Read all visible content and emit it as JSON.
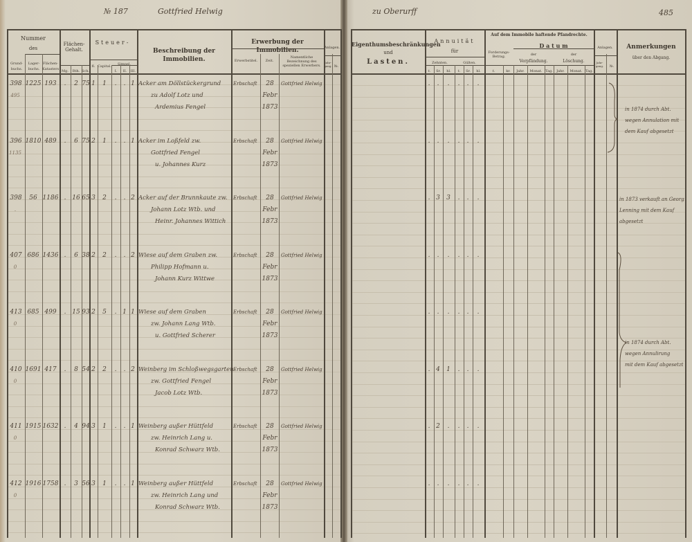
{
  "page_header": {
    "left_number": "№ 187",
    "left_name": "Gottfried Helwig",
    "right_place": "zu Oberurff",
    "page_number": "485"
  },
  "left_headers": {
    "nummer": "Nummer",
    "des": "des",
    "grundbuch": "Grund-buchs.",
    "lagerbuch": "Lager-buchs.",
    "kataster": "Flächen-Katasters",
    "flaechen": "Flächen-Gehalt.",
    "mg": "Mg.",
    "rth": "Rth.",
    "sch": "Sch.",
    "steuer": "Steuer-",
    "fl": "fl.",
    "capital": "Capital.",
    "simpel": "Simpel.",
    "s1": "I.",
    "s2": "II.",
    "s3": "III.",
    "beschreibung": "Beschreibung der Immobilien.",
    "erwerbung": "Erwerbung der Immobilien.",
    "erwerbstitel": "Erwerbstitel.",
    "zeit": "Zeit.",
    "erwerber": "Namentliche Bezeichnung des speziellen Erwerbers.",
    "anlagen": "Anlagen.",
    "jahrgang": "Jahr-gang.",
    "nr": "№."
  },
  "right_headers": {
    "eigenthum": "Eigenthumsbeschränkungen",
    "und": "und",
    "lasten": "Lasten.",
    "annuitaet": "Annuität",
    "fuer": "für",
    "zehnten": "Zehnten.",
    "gueltten": "Gülten.",
    "thlr": "ℓ.",
    "sgr": "Sr.",
    "hl": "hl.",
    "pfandrechte": "Auf dem Immobile haftende Pfandrechte.",
    "forderung": "Forderungs-Betrag.",
    "fl": "ℓ.",
    "kr": "kr.",
    "datum": "D a t u m",
    "der1": "der",
    "verpfaendung": "Verpfändung.",
    "der2": "der",
    "loeschung": "Löschung.",
    "jahr": "Jahr.",
    "monat": "Monat.",
    "tag": "Tag.",
    "anlagen": "Anlagen.",
    "jahrgang": "Jahr-gang.",
    "nr": "№.",
    "anmerkungen": "Anmerkungen",
    "abgang": "über den Abgang."
  },
  "rows": [
    {
      "grund": "398",
      "grund_note": "495",
      "lager": "1225",
      "kataster": "193",
      "mg": ".",
      "rth": "2",
      "sch": "75",
      "fl": "1",
      "capital": "1",
      "s1": ".",
      "s2": ".",
      "s3": "1",
      "desc": [
        "Acker am Döllstückergrund",
        "zu Adolf Lotz und",
        "Ardemius Fengel"
      ],
      "titel": "Erbschaft",
      "zeit": [
        "28",
        "Febr",
        "1873"
      ],
      "erwerber": "Gottfried Helwig",
      "annuitaet": [
        ".",
        ".",
        ".",
        ".",
        ".",
        "."
      ]
    },
    {
      "grund": "396",
      "grund_note": "1135",
      "lager": "1810",
      "kataster": "489",
      "mg": ".",
      "rth": "6",
      "sch": "75",
      "fl": "2",
      "capital": "1",
      "s1": ".",
      "s2": ".",
      "s3": "1",
      "desc": [
        "Acker im Loßfeld zw.",
        "Gottfried Fengel",
        "u. Johannes Kurz"
      ],
      "titel": "Erbschaft",
      "zeit": [
        "28",
        "Febr",
        "1873"
      ],
      "erwerber": "Gottfried Helwig",
      "annuitaet": [
        ".",
        ".",
        ".",
        ".",
        ".",
        "."
      ]
    },
    {
      "grund": "398",
      "grund_note": ".",
      "lager": "56",
      "kataster": "1186",
      "mg": ".",
      "rth": "16",
      "sch": "65",
      "fl": "3",
      "capital": "2",
      "s1": ".",
      "s2": ".",
      "s3": "2",
      "desc": [
        "Acker auf der Brunnkaute zw.",
        "Johann Lotz Wtb. und",
        "Heinr. Johannes Wittich"
      ],
      "titel": "Erbschaft",
      "zeit": [
        "28",
        "Febr",
        "1873"
      ],
      "erwerber": "Gottfried Helwig",
      "annuitaet": [
        ".",
        "3",
        "3",
        ".",
        ".",
        "."
      ]
    },
    {
      "grund": "407",
      "grund_note": "0",
      "lager": "686",
      "kataster": "1436",
      "mg": ".",
      "rth": "6",
      "sch": "38",
      "fl": "2",
      "capital": "2",
      "s1": ".",
      "s2": ".",
      "s3": "2",
      "desc": [
        "Wiese auf dem Graben zw.",
        "Philipp Hofmann u.",
        "Johann Kurz Wittwe"
      ],
      "titel": "Erbschaft",
      "zeit": [
        "28",
        "Febr",
        "1873"
      ],
      "erwerber": "Gottfried Helwig",
      "annuitaet": [
        ".",
        ".",
        ".",
        ".",
        ".",
        "."
      ]
    },
    {
      "grund": "413",
      "grund_note": "0",
      "lager": "685",
      "kataster": "499",
      "mg": ".",
      "rth": "15",
      "sch": "93",
      "fl": "2",
      "capital": "5",
      "s1": ".",
      "s2": "1",
      "s3": "1",
      "desc": [
        "Wiese auf dem Graben",
        "zw. Johann Lang Wtb.",
        "u. Gottfried Scherer"
      ],
      "titel": "Erbschaft",
      "zeit": [
        "28",
        "Febr",
        "1873"
      ],
      "erwerber": "Gottfried Helwig",
      "annuitaet": [
        ".",
        ".",
        ".",
        ".",
        ".",
        "."
      ]
    },
    {
      "grund": "410",
      "grund_note": "0",
      "lager": "1691",
      "kataster": "417",
      "mg": ".",
      "rth": "8",
      "sch": "54",
      "fl": "2",
      "capital": "2",
      "s1": ".",
      "s2": ".",
      "s3": "2",
      "desc": [
        "Weinberg im Schloßwegsgarten",
        "zw. Gottfried Fengel",
        "Jacob Lotz Wtb."
      ],
      "titel": "Erbschaft",
      "zeit": [
        "28",
        "Febr",
        "1873"
      ],
      "erwerber": "Gottfried Helwig",
      "annuitaet": [
        ".",
        "4",
        "1",
        ".",
        ".",
        "."
      ]
    },
    {
      "grund": "411",
      "grund_note": "0",
      "lager": "1915",
      "kataster": "1632",
      "mg": ".",
      "rth": "4",
      "sch": "94",
      "fl": "3",
      "capital": "1",
      "s1": ".",
      "s2": ".",
      "s3": "1",
      "desc": [
        "Weinberg außer Hüttfeld",
        "zw. Heinrich Lang u.",
        "Konrad Schwarz Wtb."
      ],
      "titel": "Erbschaft",
      "zeit": [
        "28",
        "Febr",
        "1873"
      ],
      "erwerber": "Gottfried Helwig",
      "annuitaet": [
        ".",
        "2",
        ".",
        ".",
        ".",
        "."
      ]
    },
    {
      "grund": "412",
      "grund_note": "0",
      "lager": "1916",
      "kataster": "1758",
      "mg": ".",
      "rth": "3",
      "sch": "56",
      "fl": "3",
      "capital": "1",
      "s1": ".",
      "s2": ".",
      "s3": "1",
      "desc": [
        "Weinberg außer Hüttfeld",
        "zw. Heinrich Lang und",
        "Konrad Schwarz Wtb."
      ],
      "titel": "Erbschaft",
      "zeit": [
        "28",
        "Febr",
        "1873"
      ],
      "erwerber": "Gottfried Helwig",
      "annuitaet": [
        ".",
        ".",
        ".",
        ".",
        ".",
        "."
      ]
    }
  ],
  "remarks": [
    {
      "lines": [
        "in 1874 durch Abt.",
        "wegen Annulation mit",
        "dem Kauf abgesetzt"
      ]
    },
    {
      "lines": [
        "in 1873 verkauft an Georg",
        "Lenning mit dem Kauf",
        "abgesetzt"
      ]
    },
    {
      "lines": [
        "in 1874 durch Abt.",
        "wegen Annulirung",
        "mit dem Kauf abgesetzt"
      ]
    }
  ]
}
